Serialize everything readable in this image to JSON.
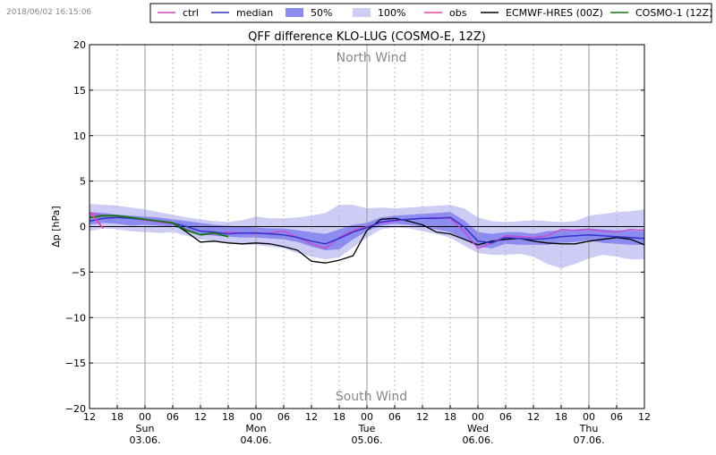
{
  "timestamp": "2018/06/02 16:15:06",
  "legend": [
    {
      "label": "ctrl",
      "kind": "line",
      "color": "#cc44cc"
    },
    {
      "label": "median",
      "kind": "line",
      "color": "#3333cc"
    },
    {
      "label": "50%",
      "kind": "patch",
      "color": "#8c8cf0"
    },
    {
      "label": "100%",
      "kind": "patch",
      "color": "#ccccf5"
    },
    {
      "label": "obs",
      "kind": "line",
      "color": "#ee44aa"
    },
    {
      "label": "ECMWF-HRES (00Z)",
      "kind": "line",
      "color": "#000000"
    },
    {
      "label": "COSMO-1 (12Z)",
      "kind": "line",
      "color": "#117711"
    }
  ],
  "annotations": {
    "top": "North Wind",
    "bottom": "South Wind"
  },
  "chart_data": {
    "type": "line",
    "title": "QFF difference KLO-LUG (COSMO-E, 12Z)",
    "xlabel": "",
    "ylabel": "Δp [hPa]",
    "xlim": [
      0,
      120
    ],
    "ylim": [
      -20,
      20
    ],
    "grid": true,
    "legend_position": "top",
    "yticks": [
      20,
      15,
      10,
      5,
      0,
      -5,
      -10,
      -15,
      -20
    ],
    "xticks": [
      {
        "x": 0,
        "label": "12",
        "date": ""
      },
      {
        "x": 6,
        "label": "18",
        "date": ""
      },
      {
        "x": 12,
        "label": "00",
        "date": "Sun\n03.06."
      },
      {
        "x": 18,
        "label": "06",
        "date": ""
      },
      {
        "x": 24,
        "label": "12",
        "date": ""
      },
      {
        "x": 30,
        "label": "18",
        "date": ""
      },
      {
        "x": 36,
        "label": "00",
        "date": "Mon\n04.06."
      },
      {
        "x": 42,
        "label": "06",
        "date": ""
      },
      {
        "x": 48,
        "label": "12",
        "date": ""
      },
      {
        "x": 54,
        "label": "18",
        "date": ""
      },
      {
        "x": 60,
        "label": "00",
        "date": "Tue\n05.06."
      },
      {
        "x": 66,
        "label": "06",
        "date": ""
      },
      {
        "x": 72,
        "label": "12",
        "date": ""
      },
      {
        "x": 78,
        "label": "18",
        "date": ""
      },
      {
        "x": 84,
        "label": "00",
        "date": "Wed\n06.06."
      },
      {
        "x": 90,
        "label": "06",
        "date": ""
      },
      {
        "x": 96,
        "label": "12",
        "date": ""
      },
      {
        "x": 102,
        "label": "18",
        "date": ""
      },
      {
        "x": 108,
        "label": "00",
        "date": "Thu\n07.06."
      },
      {
        "x": 114,
        "label": "06",
        "date": ""
      },
      {
        "x": 120,
        "label": "12",
        "date": ""
      }
    ],
    "x": [
      0,
      3,
      6,
      9,
      12,
      15,
      18,
      21,
      24,
      27,
      30,
      33,
      36,
      39,
      42,
      45,
      48,
      51,
      54,
      57,
      60,
      63,
      66,
      69,
      72,
      75,
      78,
      81,
      84,
      87,
      90,
      93,
      96,
      99,
      102,
      105,
      108,
      111,
      114,
      117,
      120
    ],
    "band100_low": [
      -0.5,
      -0.2,
      -0.3,
      -0.5,
      -0.6,
      -0.7,
      -0.6,
      -1.0,
      -1.4,
      -1.6,
      -1.8,
      -2.0,
      -2.0,
      -2.2,
      -2.4,
      -2.9,
      -3.3,
      -3.6,
      -3.4,
      -2.3,
      -1.2,
      -0.3,
      -0.1,
      -0.2,
      -0.5,
      -0.8,
      -1.2,
      -2.1,
      -2.9,
      -3.1,
      -3.1,
      -3.0,
      -3.3,
      -4.1,
      -4.6,
      -4.1,
      -3.5,
      -3.1,
      -3.3,
      -3.6,
      -3.6
    ],
    "band100_high": [
      2.5,
      2.4,
      2.3,
      2.1,
      1.9,
      1.6,
      1.3,
      1.0,
      0.8,
      0.6,
      0.5,
      0.7,
      1.1,
      0.9,
      0.9,
      1.0,
      1.2,
      1.5,
      2.4,
      2.4,
      2.0,
      2.1,
      2.0,
      2.1,
      2.2,
      2.3,
      2.4,
      2.0,
      1.0,
      0.6,
      0.5,
      0.6,
      0.7,
      0.6,
      0.5,
      0.6,
      1.2,
      1.4,
      1.6,
      1.7,
      1.9
    ],
    "band50_low": [
      0.2,
      0.4,
      0.3,
      0.1,
      0.2,
      0.1,
      0.0,
      -0.4,
      -0.8,
      -1.0,
      -1.1,
      -1.2,
      -1.2,
      -1.3,
      -1.4,
      -1.7,
      -2.2,
      -2.6,
      -2.5,
      -1.4,
      -0.5,
      0.1,
      0.3,
      0.2,
      0.0,
      -0.3,
      -0.6,
      -1.4,
      -2.2,
      -2.4,
      -1.9,
      -2.0,
      -2.0,
      -2.0,
      -1.8,
      -1.7,
      -1.5,
      -1.8,
      -1.9,
      -2.0,
      -2.0
    ],
    "band50_high": [
      1.6,
      1.5,
      1.3,
      1.2,
      1.1,
      1.0,
      0.8,
      0.6,
      0.4,
      0.2,
      0.1,
      0.0,
      -0.1,
      -0.2,
      -0.2,
      -0.4,
      -0.6,
      -0.8,
      -0.3,
      0.2,
      0.4,
      1.0,
      1.2,
      1.3,
      1.4,
      1.5,
      1.6,
      0.7,
      -0.6,
      -0.8,
      -0.6,
      -0.6,
      -0.8,
      -0.5,
      -0.4,
      -0.3,
      -0.2,
      -0.3,
      -0.4,
      -0.4,
      -0.5
    ],
    "series": [
      {
        "name": "median",
        "color": "#3333cc",
        "width": 1.5,
        "values": [
          0.6,
          0.9,
          1.0,
          0.9,
          0.8,
          0.6,
          0.4,
          0.0,
          -0.5,
          -0.6,
          -0.8,
          -0.7,
          -0.7,
          -0.8,
          -0.9,
          -1.2,
          -1.6,
          -1.9,
          -1.3,
          -0.6,
          -0.1,
          0.5,
          0.7,
          0.8,
          0.9,
          0.9,
          1.0,
          0.0,
          -1.6,
          -1.8,
          -1.2,
          -1.3,
          -1.4,
          -1.3,
          -1.1,
          -1.0,
          -0.9,
          -1.0,
          -1.1,
          -1.2,
          -1.3
        ]
      },
      {
        "name": "ctrl",
        "color": "#cc44cc",
        "width": 1.3,
        "values": [
          1.5,
          1.2,
          1.1,
          0.9,
          0.7,
          0.5,
          0.3,
          -0.3,
          -0.9,
          -0.8,
          -0.6,
          -0.7,
          -0.8,
          -0.7,
          -0.5,
          -1.2,
          -1.9,
          -2.4,
          -1.2,
          -0.4,
          0.0,
          0.4,
          0.6,
          0.8,
          0.9,
          1.0,
          0.9,
          -0.5,
          -2.4,
          -1.8,
          -1.0,
          -1.1,
          -1.2,
          -1.0,
          -0.3,
          -0.4,
          -0.3,
          -0.5,
          -0.6,
          -0.3,
          -0.4
        ]
      },
      {
        "name": "ECMWF-HRES (00Z)",
        "color": "#000000",
        "width": 1.3,
        "values": [
          null,
          null,
          null,
          null,
          0.8,
          0.6,
          0.4,
          -0.6,
          -1.7,
          -1.6,
          -1.8,
          -1.9,
          -1.8,
          -1.9,
          -2.2,
          -2.6,
          -3.8,
          -4.0,
          -3.7,
          -3.2,
          -0.4,
          0.8,
          0.9,
          0.6,
          0.2,
          -0.6,
          -0.8,
          -1.4,
          -2.0,
          -1.6,
          -1.4,
          -1.3,
          -1.6,
          -1.8,
          -1.9,
          -1.9,
          -1.6,
          -1.4,
          -1.2,
          -1.4,
          -2.0
        ]
      },
      {
        "name": "COSMO-1 (12Z)",
        "color": "#117711",
        "width": 1.8,
        "values": [
          1.0,
          1.2,
          1.2,
          1.0,
          0.8,
          0.6,
          0.4,
          -0.4,
          -0.9,
          -0.7,
          -1.1,
          null,
          null,
          null,
          null,
          null,
          null,
          null,
          null,
          null,
          null,
          null,
          null,
          null,
          null,
          null,
          null,
          null,
          null,
          null,
          null,
          null,
          null,
          null,
          null,
          null,
          null,
          null,
          null,
          null,
          null
        ]
      },
      {
        "name": "obs",
        "color": "#ee44aa",
        "width": 1.8,
        "values": [
          1.6,
          -0.2,
          null,
          null,
          null,
          null,
          null,
          null,
          null,
          null,
          null,
          null,
          null,
          null,
          null,
          null,
          null,
          null,
          null,
          null,
          null,
          null,
          null,
          null,
          null,
          null,
          null,
          null,
          null,
          null,
          null,
          null,
          null,
          null,
          null,
          null,
          null,
          null,
          null,
          null,
          null
        ]
      }
    ]
  }
}
